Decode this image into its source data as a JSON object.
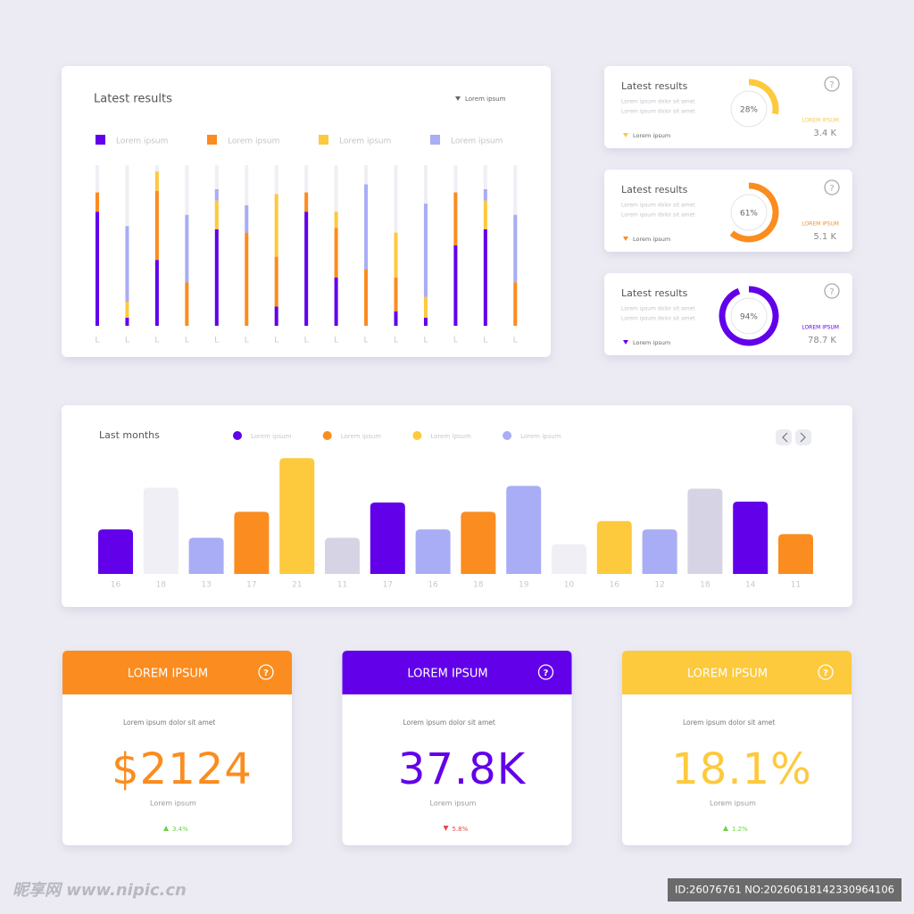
{
  "chart_data": [
    {
      "type": "stacked_bar",
      "title": "Latest results",
      "dropdown": "Lorem ipsum",
      "categories": [
        "L",
        "L",
        "L",
        "L",
        "L",
        "L",
        "L",
        "L",
        "L",
        "L",
        "L",
        "L",
        "L",
        "L",
        "L"
      ],
      "ylim": [
        0,
        100
      ],
      "series": [
        {
          "name": "Lorem ipsum",
          "color": "#6200ea",
          "values": [
            71,
            5,
            41,
            0,
            60,
            0,
            12,
            71,
            30,
            0,
            9,
            5,
            50,
            60,
            0
          ]
        },
        {
          "name": "Lorem ipsum",
          "color": "#fb8c1f",
          "values": [
            12,
            0,
            43,
            27,
            0,
            58,
            31,
            12,
            31,
            35,
            21,
            0,
            33,
            0,
            27
          ]
        },
        {
          "name": "Lorem ipsum",
          "color": "#fdc93d",
          "values": [
            0,
            10,
            12,
            0,
            18,
            0,
            39,
            0,
            10,
            0,
            28,
            13,
            0,
            18,
            0
          ]
        },
        {
          "name": "Lorem ipsum",
          "color": "#a8adf5",
          "values": [
            0,
            47,
            0,
            42,
            7,
            17,
            0,
            0,
            0,
            53,
            0,
            58,
            0,
            7,
            42
          ]
        }
      ]
    },
    {
      "type": "donut",
      "title": "Latest results",
      "lines": [
        "Lorem ipsum dolor sit amet",
        "Lorem ipsum dolor sit amet"
      ],
      "legend": "Lorem ipsum",
      "side_label": "LOREM IPSUM",
      "total": "3.4 K",
      "color": "#fdc93d",
      "values": [
        28
      ],
      "value_labels": [
        "28%"
      ]
    },
    {
      "type": "donut",
      "title": "Latest results",
      "lines": [
        "Lorem ipsum dolor sit amet",
        "Lorem ipsum dolor sit amet"
      ],
      "legend": "Lorem ipsum",
      "side_label": "LOREM IPSUM",
      "total": "5.1 K",
      "color": "#fb8c1f",
      "values": [
        61
      ],
      "value_labels": [
        "61%"
      ]
    },
    {
      "type": "donut",
      "title": "Latest results",
      "lines": [
        "Lorem ipsum dolor sit amet",
        "Lorem ipsum dolor sit amet"
      ],
      "legend": "Lorem ipsum",
      "side_label": "LOREM IPSUM",
      "total": "78.7 K",
      "color": "#6200ea",
      "values": [
        94
      ],
      "value_labels": [
        "94%"
      ]
    },
    {
      "type": "bar",
      "title": "Last months",
      "legend": [
        {
          "name": "Lorem ipsum",
          "color": "#6200ea"
        },
        {
          "name": "Lorem ipsum",
          "color": "#fb8c1f"
        },
        {
          "name": "Lorem ipsum",
          "color": "#fdc93d"
        },
        {
          "name": "Lorem ipsum",
          "color": "#a8adf5"
        }
      ],
      "categories": [
        "16",
        "18",
        "13",
        "17",
        "21",
        "11",
        "17",
        "16",
        "18",
        "19",
        "10",
        "16",
        "12",
        "18",
        "14",
        "11"
      ],
      "values": [
        48,
        93,
        39,
        67,
        125,
        39,
        77,
        48,
        67,
        95,
        32,
        57,
        48,
        92,
        78,
        43
      ],
      "colors": [
        "#6200ea",
        "#efeff5",
        "#a8adf5",
        "#fb8c1f",
        "#fdc93d",
        "#d6d4e4",
        "#6200ea",
        "#a8adf5",
        "#fb8c1f",
        "#a8adf5",
        "#efeff5",
        "#fdc93d",
        "#a8adf5",
        "#d6d4e4",
        "#6200ea",
        "#fb8c1f"
      ],
      "ylim": [
        0,
        130
      ]
    }
  ],
  "kpi_cards": [
    {
      "header": "LOREM IPSUM",
      "description": "Lorem ipsum dolor sit amet",
      "value": "$2124",
      "caption": "Lorem ipsum",
      "change": "3.4%",
      "trend": "up",
      "color": "#fb8c1f"
    },
    {
      "header": "LOREM IPSUM",
      "description": "Lorem ipsum dolor sit amet",
      "value": "37.8K",
      "caption": "Lorem ipsum",
      "change": "5.8%",
      "trend": "down",
      "color": "#6200ea"
    },
    {
      "header": "LOREM IPSUM",
      "description": "Lorem ipsum dolor sit amet",
      "value": "18.1%",
      "caption": "Lorem ipsum",
      "change": "1.2%",
      "trend": "up",
      "color": "#fdc93d"
    }
  ],
  "watermark": {
    "site": "昵享网 www.nipic.cn",
    "id": "ID:26076761 NO:20260618142330964106"
  }
}
